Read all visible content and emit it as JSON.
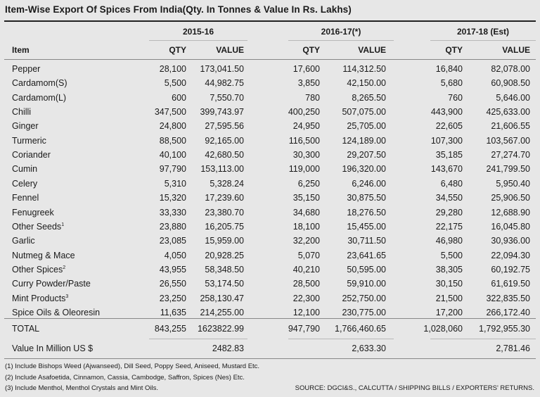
{
  "title": "Item-Wise Export Of Spices From India(Qty. In Tonnes & Value In Rs. Lakhs)",
  "year_headers": [
    "2015-16",
    "2016-17(*)",
    "2017-18 (Est)"
  ],
  "column_headers": {
    "item": "Item",
    "qty": "QTY",
    "value": "VALUE"
  },
  "rows": [
    {
      "item": "Pepper",
      "sup": "",
      "q1": "28,100",
      "v1": "173,041.50",
      "q2": "17,600",
      "v2": "114,312.50",
      "q3": "16,840",
      "v3": "82,078.00"
    },
    {
      "item": "Cardamom(S)",
      "sup": "",
      "q1": "5,500",
      "v1": "44,982.75",
      "q2": "3,850",
      "v2": "42,150.00",
      "q3": "5,680",
      "v3": "60,908.50"
    },
    {
      "item": "Cardamom(L)",
      "sup": "",
      "q1": "600",
      "v1": "7,550.70",
      "q2": "780",
      "v2": "8,265.50",
      "q3": "760",
      "v3": "5,646.00"
    },
    {
      "item": "Chilli",
      "sup": "",
      "q1": "347,500",
      "v1": "399,743.97",
      "q2": "400,250",
      "v2": "507,075.00",
      "q3": "443,900",
      "v3": "425,633.00"
    },
    {
      "item": "Ginger",
      "sup": "",
      "q1": "24,800",
      "v1": "27,595.56",
      "q2": "24,950",
      "v2": "25,705.00",
      "q3": "22,605",
      "v3": "21,606.55"
    },
    {
      "item": "Turmeric",
      "sup": "",
      "q1": "88,500",
      "v1": "92,165.00",
      "q2": "116,500",
      "v2": "124,189.00",
      "q3": "107,300",
      "v3": "103,567.00"
    },
    {
      "item": "Coriander",
      "sup": "",
      "q1": "40,100",
      "v1": "42,680.50",
      "q2": "30,300",
      "v2": "29,207.50",
      "q3": "35,185",
      "v3": "27,274.70"
    },
    {
      "item": "Cumin",
      "sup": "",
      "q1": "97,790",
      "v1": "153,113.00",
      "q2": "119,000",
      "v2": "196,320.00",
      "q3": "143,670",
      "v3": "241,799.50"
    },
    {
      "item": "Celery",
      "sup": "",
      "q1": "5,310",
      "v1": "5,328.24",
      "q2": "6,250",
      "v2": "6,246.00",
      "q3": "6,480",
      "v3": "5,950.40"
    },
    {
      "item": "Fennel",
      "sup": "",
      "q1": "15,320",
      "v1": "17,239.60",
      "q2": "35,150",
      "v2": "30,875.50",
      "q3": "34,550",
      "v3": "25,906.50"
    },
    {
      "item": "Fenugreek",
      "sup": "",
      "q1": "33,330",
      "v1": "23,380.70",
      "q2": "34,680",
      "v2": "18,276.50",
      "q3": "29,280",
      "v3": "12,688.90"
    },
    {
      "item": "Other Seeds",
      "sup": "1",
      "q1": "23,880",
      "v1": "16,205.75",
      "q2": "18,100",
      "v2": "15,455.00",
      "q3": "22,175",
      "v3": "16,045.80"
    },
    {
      "item": "Garlic",
      "sup": "",
      "q1": "23,085",
      "v1": "15,959.00",
      "q2": "32,200",
      "v2": "30,711.50",
      "q3": "46,980",
      "v3": "30,936.00"
    },
    {
      "item": "Nutmeg & Mace",
      "sup": "",
      "q1": "4,050",
      "v1": "20,928.25",
      "q2": "5,070",
      "v2": "23,641.65",
      "q3": "5,500",
      "v3": "22,094.30"
    },
    {
      "item": "Other Spices",
      "sup": "2",
      "q1": "43,955",
      "v1": "58,348.50",
      "q2": "40,210",
      "v2": "50,595.00",
      "q3": "38,305",
      "v3": "60,192.75"
    },
    {
      "item": "Curry Powder/Paste",
      "sup": "",
      "q1": "26,550",
      "v1": "53,174.50",
      "q2": "28,500",
      "v2": "59,910.00",
      "q3": "30,150",
      "v3": "61,619.50"
    },
    {
      "item": "Mint Products",
      "sup": "3",
      "q1": "23,250",
      "v1": "258,130.47",
      "q2": "22,300",
      "v2": "252,750.00",
      "q3": "21,500",
      "v3": "322,835.50"
    },
    {
      "item": "Spice Oils & Oleoresin",
      "sup": "",
      "q1": "11,635",
      "v1": "214,255.00",
      "q2": "12,100",
      "v2": "230,775.00",
      "q3": "17,200",
      "v3": "266,172.40"
    }
  ],
  "total": {
    "item": "TOTAL",
    "q1": "843,255",
    "v1": "1623822.99",
    "q2": "947,790",
    "v2": "1,766,460.65",
    "q3": "1,028,060",
    "v3": "1,792,955.30"
  },
  "usd": {
    "item": "Value In Million US $",
    "v1": "2482.83",
    "v2": "2,633.30",
    "v3": "2,781.46"
  },
  "footnotes": [
    "(1) Include Bishops Weed (Ajwanseed), Dill Seed, Poppy Seed, Aniseed, Mustard Etc.",
    "(2) Include Asafoetida, Cinnamon, Cassia, Cambodge, Saffron, Spices (Nes) Etc.",
    "(3) Include Menthol, Menthol Crystals and Mint Oils."
  ],
  "source": "SOURCE: DGCI&S., CALCUTTA / SHIPPING BILLS / EXPORTERS' RETURNS."
}
